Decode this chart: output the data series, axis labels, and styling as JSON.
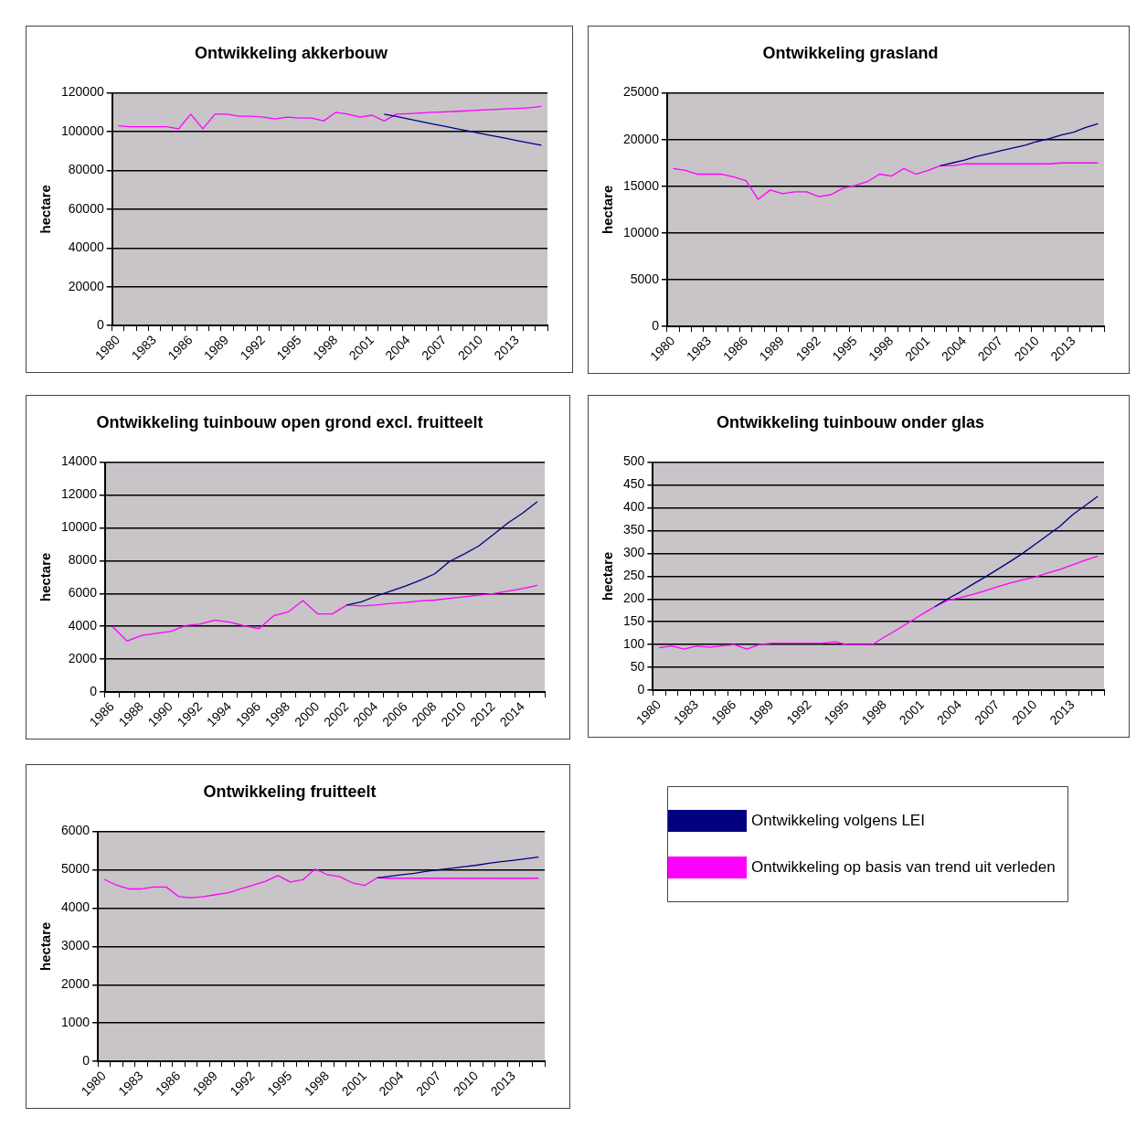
{
  "chart_data": [
    {
      "type": "line",
      "title": "Ontwikkeling akkerbouw",
      "ylabel": "hectare",
      "marker": "none",
      "grid": "y",
      "categories": [
        "1980",
        null,
        null,
        "1983",
        null,
        null,
        "1986",
        null,
        null,
        "1989",
        null,
        null,
        "1992",
        null,
        null,
        "1995",
        null,
        null,
        "1998",
        null,
        null,
        "2001",
        null,
        null,
        "2004",
        null,
        null,
        "2007",
        null,
        null,
        "2010",
        null,
        null,
        "2013",
        null,
        null
      ],
      "ylim": [
        0,
        120000
      ],
      "yticks": [
        0,
        20000,
        40000,
        60000,
        80000,
        100000,
        120000
      ],
      "series": [
        {
          "color": "#000080",
          "values": [
            null,
            null,
            null,
            null,
            null,
            null,
            null,
            null,
            null,
            null,
            null,
            null,
            null,
            null,
            null,
            null,
            null,
            null,
            null,
            null,
            null,
            null,
            109000,
            107800,
            106500,
            105300,
            104000,
            102800,
            101500,
            100300,
            99000,
            97800,
            96600,
            95400,
            94200,
            93000
          ]
        },
        {
          "color": "#ff00ff",
          "values": [
            103000,
            102500,
            102500,
            102500,
            102500,
            101500,
            109000,
            101500,
            109000,
            109000,
            108000,
            108000,
            107500,
            106500,
            107500,
            107000,
            107000,
            105500,
            110000,
            109000,
            107500,
            108500,
            105500,
            109000,
            109300,
            109600,
            110000,
            110200,
            110500,
            110800,
            111100,
            111400,
            111700,
            112000,
            112300,
            113000
          ]
        }
      ]
    },
    {
      "type": "line",
      "title": "Ontwikkeling grasland",
      "ylabel": "hectare",
      "marker": "none",
      "grid": "y",
      "categories": [
        "1980",
        null,
        null,
        "1983",
        null,
        null,
        "1986",
        null,
        null,
        "1989",
        null,
        null,
        "1992",
        null,
        null,
        "1995",
        null,
        null,
        "1998",
        null,
        null,
        "2001",
        null,
        null,
        "2004",
        null,
        null,
        "2007",
        null,
        null,
        "2010",
        null,
        null,
        "2013",
        null,
        null
      ],
      "ylim": [
        0,
        25000
      ],
      "yticks": [
        0,
        5000,
        10000,
        15000,
        20000,
        25000
      ],
      "series": [
        {
          "color": "#000080",
          "values": [
            null,
            null,
            null,
            null,
            null,
            null,
            null,
            null,
            null,
            null,
            null,
            null,
            null,
            null,
            null,
            null,
            null,
            null,
            null,
            null,
            null,
            null,
            17200,
            17500,
            17800,
            18200,
            18500,
            18800,
            19100,
            19400,
            19800,
            20100,
            20500,
            20800,
            21300,
            21700
          ]
        },
        {
          "color": "#ff00ff",
          "values": [
            16900,
            16700,
            16300,
            16300,
            16300,
            16000,
            15600,
            13600,
            14600,
            14200,
            14400,
            14400,
            13900,
            14100,
            14800,
            15100,
            15500,
            16300,
            16100,
            16900,
            16300,
            16700,
            17200,
            17200,
            17400,
            17400,
            17400,
            17400,
            17400,
            17400,
            17400,
            17400,
            17500,
            17500,
            17500,
            17500
          ]
        }
      ]
    },
    {
      "type": "line",
      "title": "Ontwikkeling tuinbouw open grond excl. fruitteelt",
      "ylabel": "hectare",
      "marker": "none",
      "grid": "y",
      "categories": [
        "1986",
        null,
        "1988",
        null,
        "1990",
        null,
        "1992",
        null,
        "1994",
        null,
        "1996",
        null,
        "1998",
        null,
        "2000",
        null,
        "2002",
        null,
        "2004",
        null,
        "2006",
        null,
        "2008",
        null,
        "2010",
        null,
        "2012",
        null,
        "2014",
        null
      ],
      "ylim": [
        0,
        14000
      ],
      "yticks": [
        0,
        2000,
        4000,
        6000,
        8000,
        10000,
        12000,
        14000
      ],
      "series": [
        {
          "color": "#000080",
          "values": [
            null,
            null,
            null,
            null,
            null,
            null,
            null,
            null,
            null,
            null,
            null,
            null,
            null,
            null,
            null,
            null,
            5300,
            5500,
            5850,
            6150,
            6450,
            6800,
            7200,
            7950,
            8400,
            8900,
            9600,
            10300,
            10900,
            11600
          ]
        },
        {
          "color": "#ff00ff",
          "values": [
            4000,
            3100,
            3450,
            3580,
            3700,
            4050,
            4150,
            4380,
            4260,
            4030,
            3860,
            4640,
            4880,
            5570,
            4760,
            4760,
            5300,
            5250,
            5300,
            5400,
            5450,
            5550,
            5600,
            5700,
            5800,
            5900,
            6000,
            6150,
            6300,
            6500
          ]
        }
      ]
    },
    {
      "type": "line",
      "title": "Ontwikkeling tuinbouw onder glas",
      "ylabel": "hectare",
      "marker": "none",
      "grid": "y",
      "categories": [
        "1980",
        null,
        null,
        "1983",
        null,
        null,
        "1986",
        null,
        null,
        "1989",
        null,
        null,
        "1992",
        null,
        null,
        "1995",
        null,
        null,
        "1998",
        null,
        null,
        "2001",
        null,
        null,
        "2004",
        null,
        null,
        "2007",
        null,
        null,
        "2010",
        null,
        null,
        "2013",
        null,
        null
      ],
      "ylim": [
        0,
        500
      ],
      "yticks": [
        0,
        50,
        100,
        150,
        200,
        250,
        300,
        350,
        400,
        450,
        500
      ],
      "series": [
        {
          "color": "#000080",
          "values": [
            null,
            null,
            null,
            null,
            null,
            null,
            null,
            null,
            null,
            null,
            null,
            null,
            null,
            null,
            null,
            null,
            null,
            null,
            null,
            null,
            null,
            null,
            183,
            200,
            215,
            232,
            248,
            265,
            282,
            300,
            320,
            340,
            360,
            385,
            405,
            425
          ]
        },
        {
          "color": "#ff00ff",
          "values": [
            93,
            97,
            90,
            97,
            94,
            97,
            100,
            90,
            100,
            103,
            103,
            103,
            103,
            103,
            106,
            100,
            100,
            100,
            117,
            133,
            150,
            167,
            183,
            197,
            203,
            210,
            218,
            227,
            235,
            242,
            248,
            257,
            265,
            275,
            285,
            294
          ]
        }
      ]
    },
    {
      "type": "line",
      "title": "Ontwikkeling fruitteelt",
      "ylabel": "hectare",
      "marker": "none",
      "grid": "y",
      "legend": "right",
      "categories": [
        "1980",
        null,
        null,
        "1983",
        null,
        null,
        "1986",
        null,
        null,
        "1989",
        null,
        null,
        "1992",
        null,
        null,
        "1995",
        null,
        null,
        "1998",
        null,
        null,
        "2001",
        null,
        null,
        "2004",
        null,
        null,
        "2007",
        null,
        null,
        "2010",
        null,
        null,
        "2013",
        null,
        null
      ],
      "ylim": [
        0,
        6000
      ],
      "yticks": [
        0,
        1000,
        2000,
        3000,
        4000,
        5000,
        6000
      ],
      "series": [
        {
          "name": "Ontwikkeling volgens LEI",
          "color": "#000080",
          "values": [
            null,
            null,
            null,
            null,
            null,
            null,
            null,
            null,
            null,
            null,
            null,
            null,
            null,
            null,
            null,
            null,
            null,
            null,
            null,
            null,
            null,
            null,
            4790,
            4830,
            4870,
            4910,
            4960,
            5000,
            5040,
            5080,
            5120,
            5170,
            5210,
            5250,
            5290,
            5330
          ]
        },
        {
          "name": "Ontwikkeling op basis van trend uit verleden",
          "color": "#ff00ff",
          "values": [
            4750,
            4600,
            4500,
            4500,
            4550,
            4550,
            4300,
            4270,
            4300,
            4350,
            4400,
            4500,
            4600,
            4700,
            4850,
            4680,
            4740,
            5020,
            4870,
            4820,
            4660,
            4590,
            4790,
            4780,
            4780,
            4780,
            4780,
            4780,
            4780,
            4780,
            4780,
            4780,
            4780,
            4780,
            4780,
            4780
          ]
        }
      ]
    }
  ]
}
